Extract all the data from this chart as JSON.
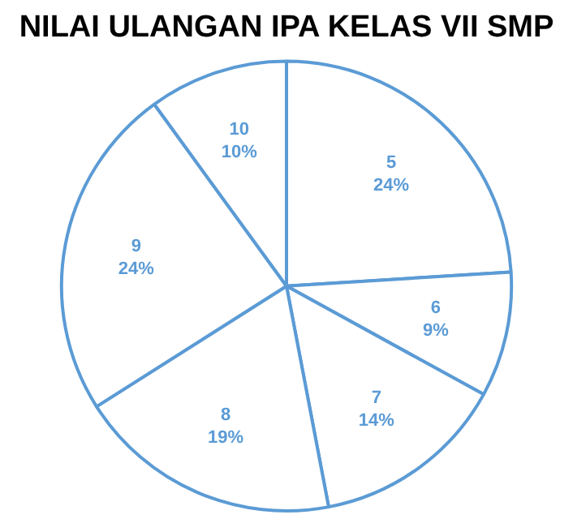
{
  "chart_data": {
    "type": "pie",
    "title": "NILAI ULANGAN IPA KELAS VII SMP",
    "categories": [
      "5",
      "6",
      "7",
      "8",
      "9",
      "10"
    ],
    "values": [
      24,
      9,
      14,
      19,
      24,
      10
    ],
    "value_labels": [
      "24%",
      "9%",
      "14%",
      "19%",
      "24%",
      "10%"
    ],
    "colors": [
      "#ffffff",
      "#ffffff",
      "#ffffff",
      "#ffffff",
      "#ffffff",
      "#ffffff"
    ],
    "legend": false
  }
}
